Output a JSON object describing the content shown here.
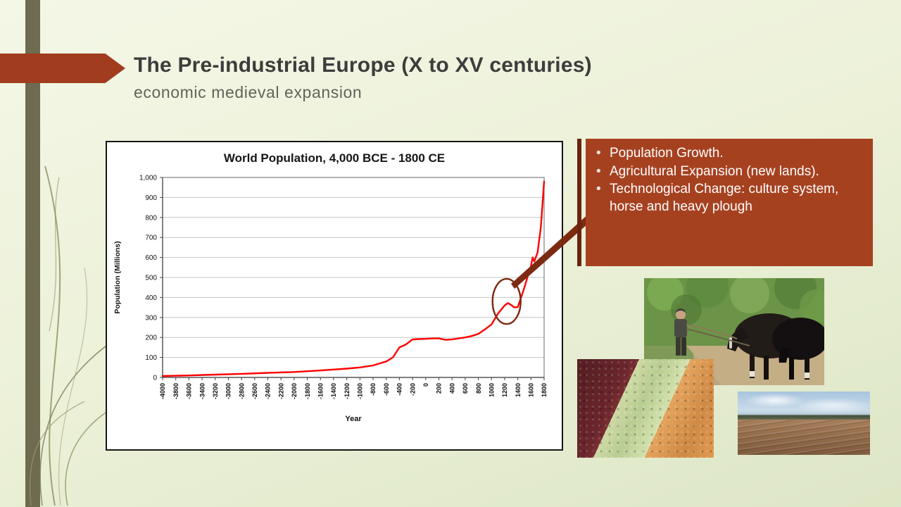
{
  "slide": {
    "title": "The Pre-industrial Europe (X to XV centuries)",
    "subtitle": "economic medieval expansion",
    "bullet_char": "•",
    "bullets": [
      "Population Growth.",
      "Agricultural Expansion (new lands).",
      "Technological Change: culture system, horse and heavy plough"
    ]
  },
  "chart_data": {
    "type": "line",
    "title": "World Population, 4,000 BCE - 1800 CE",
    "xlabel": "Year",
    "ylabel": "Population (Millions)",
    "xlim": [
      -4000,
      1800
    ],
    "ylim": [
      0,
      1000
    ],
    "x_tick_step": 200,
    "y_tick_step": 100,
    "grid": "horizontal-only",
    "legend": "none",
    "line_color": "#ff0000",
    "points": [
      [
        -4000,
        7
      ],
      [
        -3600,
        10
      ],
      [
        -3200,
        14
      ],
      [
        -2800,
        18
      ],
      [
        -2400,
        23
      ],
      [
        -2000,
        27
      ],
      [
        -1600,
        35
      ],
      [
        -1200,
        44
      ],
      [
        -1000,
        50
      ],
      [
        -800,
        60
      ],
      [
        -600,
        80
      ],
      [
        -500,
        100
      ],
      [
        -400,
        150
      ],
      [
        -300,
        165
      ],
      [
        -200,
        190
      ],
      [
        -100,
        192
      ],
      [
        0,
        193
      ],
      [
        100,
        195
      ],
      [
        200,
        195
      ],
      [
        300,
        188
      ],
      [
        400,
        190
      ],
      [
        500,
        195
      ],
      [
        600,
        200
      ],
      [
        700,
        207
      ],
      [
        800,
        218
      ],
      [
        900,
        240
      ],
      [
        1000,
        265
      ],
      [
        1100,
        320
      ],
      [
        1200,
        360
      ],
      [
        1250,
        372
      ],
      [
        1300,
        362
      ],
      [
        1350,
        350
      ],
      [
        1400,
        352
      ],
      [
        1450,
        400
      ],
      [
        1500,
        450
      ],
      [
        1550,
        505
      ],
      [
        1600,
        555
      ],
      [
        1625,
        600
      ],
      [
        1650,
        580
      ],
      [
        1700,
        625
      ],
      [
        1750,
        750
      ],
      [
        1800,
        980
      ]
    ],
    "annotation": {
      "shape": "ellipse",
      "x": 1230,
      "y": 380
    }
  },
  "colors": {
    "background_light": "#f4f7e6",
    "background_dark": "#dde6c6",
    "side_stripe": "#6e6b50",
    "arrow_banner": "#a23c1e",
    "text_box": "#a64120",
    "text_box_accent": "#6b2310",
    "chart_line": "#ff0000",
    "annotation_stroke": "#7c2a12",
    "title_text": "#3d3d3d",
    "subtitle_text": "#63635a"
  },
  "images": [
    {
      "name": "horses-ploughing-photo"
    },
    {
      "name": "seeds-legumes-photo"
    },
    {
      "name": "ploughed-field-photo"
    }
  ]
}
